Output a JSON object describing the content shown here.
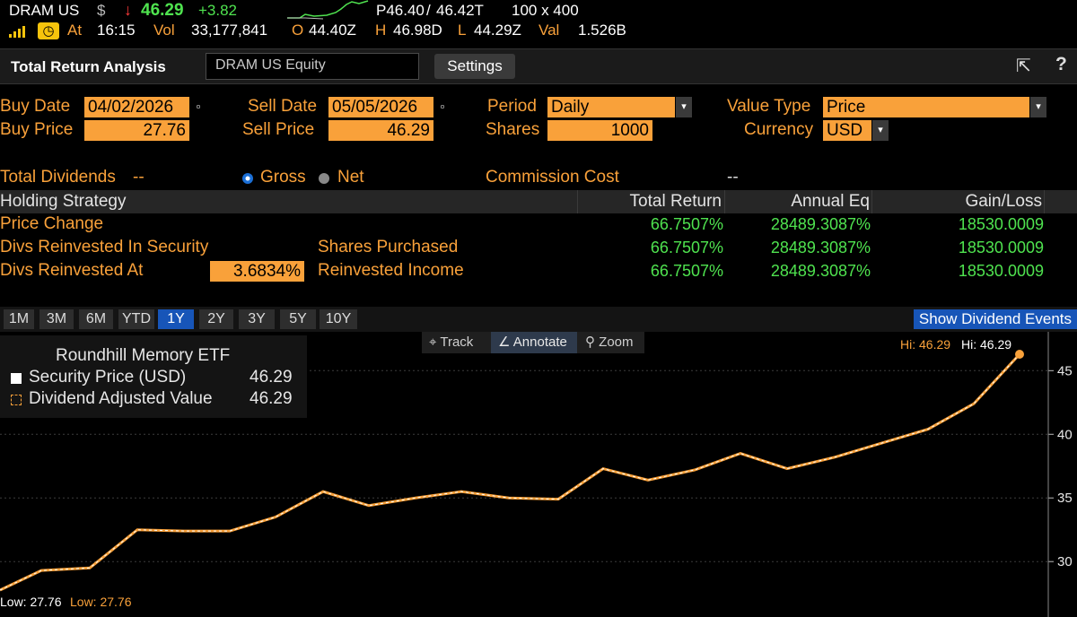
{
  "quote": {
    "ticker": "DRAM US",
    "currency_symbol": "$",
    "arrow": "↓",
    "last": "46.29",
    "change": "+3.82",
    "bid": "P46.40",
    "slash": "/",
    "ask": "46.42T",
    "size": "100 x 400",
    "at_label": "At",
    "time": "16:15",
    "vol_label": "Vol",
    "volume": "33,177,841",
    "open_label": "O",
    "open": "44.40Z",
    "high_label": "H",
    "high": "46.98D",
    "low_label": "L",
    "low": "44.29Z",
    "val_label": "Val",
    "value": "1.526B",
    "badge_glyph": "◷"
  },
  "titlebar": {
    "title": "Total Return Analysis",
    "security": "DRAM US Equity",
    "settings": "Settings",
    "export_glyph": "⇱",
    "help_glyph": "?"
  },
  "form": {
    "buy_date_label": "Buy Date",
    "buy_date": "04/02/2026",
    "sell_date_label": "Sell Date",
    "sell_date": "05/05/2026",
    "period_label": "Period",
    "period": "Daily",
    "value_type_label": "Value Type",
    "value_type": "Price",
    "buy_price_label": "Buy Price",
    "buy_price": "27.76",
    "sell_price_label": "Sell Price",
    "sell_price": "46.29",
    "shares_label": "Shares",
    "shares": "1000",
    "currency_label": "Currency",
    "currency": "USD",
    "total_dividends_label": "Total Dividends",
    "total_dividends": "--",
    "gross_label": "Gross",
    "net_label": "Net",
    "commission_label": "Commission Cost",
    "commission": "--",
    "cal_glyph": "▫",
    "dd_glyph": "▾"
  },
  "table": {
    "headers": [
      "Holding Strategy",
      "Total Return",
      "Annual Eq",
      "Gain/Loss"
    ],
    "rows": [
      {
        "label": "Price Change",
        "mid_label": "",
        "total_return": "66.7507%",
        "annual_eq": "28489.3087%",
        "gain_loss": "18530.0009"
      },
      {
        "label": "Divs Reinvested In Security",
        "mid_label": "Shares Purchased",
        "total_return": "66.7507%",
        "annual_eq": "28489.3087%",
        "gain_loss": "18530.0009"
      },
      {
        "label": "Divs Reinvested At",
        "mid_label": "Reinvested Income",
        "total_return": "66.7507%",
        "annual_eq": "28489.3087%",
        "gain_loss": "18530.0009"
      }
    ],
    "reinvest_rate": "3.6834%"
  },
  "periods": {
    "buttons": [
      "1M",
      "3M",
      "6M",
      "YTD",
      "1Y",
      "2Y",
      "3Y",
      "5Y",
      "10Y"
    ],
    "active": "1Y",
    "show_dividend_events": "Show Dividend Events"
  },
  "chart_tools": {
    "track": "Track",
    "annotate": "Annotate",
    "zoom": "Zoom"
  },
  "legend": {
    "title": "Roundhill Memory ETF",
    "series1_label": "Security Price (USD)",
    "series1_value": "46.29",
    "series2_label": "Dividend Adjusted Value",
    "series2_value": "46.29"
  },
  "chart_labels": {
    "hi1": "Hi: 46.29",
    "hi2": "Hi: 46.29",
    "low1": "Low: 27.76",
    "low2": "Low: 27.76"
  },
  "colors": {
    "orange": "#f9a13a",
    "green": "#4fe34f",
    "red": "#ff3b3b",
    "blue": "#1755b8",
    "line_dash": "#ffffff"
  },
  "chart_data": {
    "type": "line",
    "series": [
      {
        "name": "Security Price (USD)",
        "values": [
          27.76,
          29.3,
          29.5,
          32.5,
          32.4,
          32.4,
          33.5,
          35.5,
          34.4,
          35.0,
          35.5,
          35.0,
          34.9,
          37.3,
          36.4,
          37.2,
          38.5,
          37.3,
          38.2,
          39.3,
          40.4,
          42.4,
          46.29
        ]
      },
      {
        "name": "Dividend Adjusted Value",
        "values": [
          27.76,
          29.3,
          29.5,
          32.5,
          32.4,
          32.4,
          33.5,
          35.5,
          34.4,
          35.0,
          35.5,
          35.0,
          34.9,
          37.3,
          36.4,
          37.2,
          38.5,
          37.3,
          38.2,
          39.3,
          40.4,
          42.4,
          46.29
        ]
      }
    ],
    "ylim": [
      26.5,
      47.5
    ],
    "yticks": [
      30,
      35,
      40,
      45
    ],
    "grid": true
  }
}
